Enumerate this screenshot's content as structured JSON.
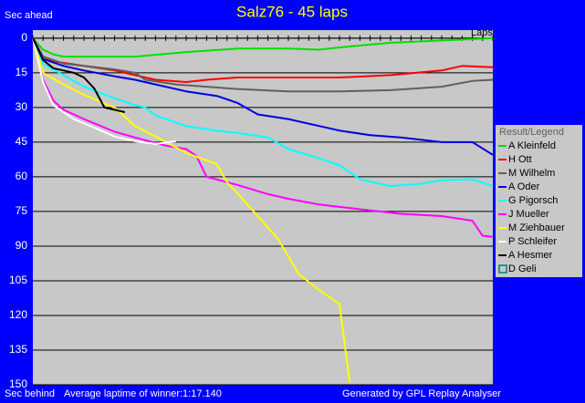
{
  "chart_data": {
    "type": "line",
    "title": "Salz76 - 45 laps",
    "y_label_top": "Sec ahead",
    "y_label_bottom": "Sec behind",
    "x_label": "Laps",
    "footer_left": "Average laptime of winner:1:17.140",
    "footer_right": "Generated by GPL Replay Analyser",
    "legend_title": "Result/Legend",
    "xlim": [
      0,
      45
    ],
    "ylim": [
      -3.5,
      150
    ],
    "y_inverted": true,
    "yticks": [
      0,
      15,
      30,
      45,
      60,
      75,
      90,
      105,
      120,
      135,
      150
    ],
    "grid": true,
    "legend": "right",
    "series": [
      {
        "name": "A Kleinfeld",
        "color": "#00e000",
        "x": [
          0,
          1,
          2,
          3,
          10,
          15,
          20,
          25,
          28,
          30,
          35,
          40,
          45
        ],
        "values": [
          0,
          5,
          7,
          8,
          8,
          6,
          4.5,
          4.5,
          5,
          4,
          2,
          1,
          0
        ]
      },
      {
        "name": "H Ott",
        "color": "#ff0000",
        "x": [
          0,
          1,
          2,
          5,
          8,
          10,
          12,
          15,
          17,
          20,
          25,
          30,
          35,
          40,
          42,
          45
        ],
        "values": [
          0,
          8,
          10,
          12,
          14,
          16,
          18,
          19,
          18,
          17,
          17,
          17,
          16,
          14,
          12,
          12.6
        ]
      },
      {
        "name": "M Wilhelm",
        "color": "#606060",
        "x": [
          0,
          1,
          3,
          5,
          8,
          10,
          11,
          14,
          17,
          20,
          25,
          30,
          35,
          40,
          43,
          45
        ],
        "values": [
          0,
          8,
          11,
          12,
          13.5,
          15,
          18,
          20,
          21,
          22,
          23,
          23,
          22.5,
          21,
          18.5,
          18
        ]
      },
      {
        "name": "A Oder",
        "color": "#0000e0",
        "x": [
          0,
          1,
          3,
          5,
          8,
          10,
          12,
          15,
          18,
          20,
          22,
          25,
          28,
          30,
          33,
          36,
          40,
          43,
          45
        ],
        "values": [
          0,
          9,
          12,
          14,
          16.5,
          18,
          20,
          23,
          25,
          28,
          33,
          35,
          38,
          40,
          42,
          43,
          45,
          45,
          50.5
        ]
      },
      {
        "name": "G Pigorsch",
        "color": "#00ffff",
        "x": [
          0,
          1,
          3,
          5,
          8,
          10,
          11,
          12,
          15,
          18,
          20,
          23,
          25,
          28,
          30,
          32,
          35,
          38,
          40,
          43,
          45
        ],
        "values": [
          0,
          11,
          16,
          21,
          26,
          29,
          30,
          33.5,
          38,
          40,
          41,
          43,
          48,
          52,
          55,
          61,
          64,
          63,
          61.5,
          61,
          64
        ]
      },
      {
        "name": "J Mueller",
        "color": "#ff00ff",
        "x": [
          0,
          1,
          2,
          3,
          5,
          8,
          10,
          13,
          15,
          16,
          17,
          20,
          23,
          25,
          28,
          30,
          33,
          36,
          40,
          43,
          44,
          45
        ],
        "values": [
          0,
          18,
          27,
          31,
          35,
          40.5,
          43,
          46.5,
          48,
          51,
          60,
          63.5,
          67.5,
          69.5,
          72,
          73,
          74.5,
          76,
          77,
          79,
          85.5,
          86
        ]
      },
      {
        "name": "M Ziehbauer",
        "color": "#ffff00",
        "x": [
          0,
          1,
          3,
          5,
          8,
          10,
          12,
          15,
          18,
          19,
          20,
          22,
          24,
          26,
          28,
          30,
          31
        ],
        "values": [
          0,
          15,
          20,
          24.5,
          30,
          38,
          42.5,
          49.7,
          54.5,
          62.4,
          67,
          77,
          87,
          102,
          109,
          115,
          149
        ]
      },
      {
        "name": "P Schleifer",
        "color": "#ffffff",
        "x": [
          0,
          1,
          2,
          4,
          6,
          8,
          10,
          12,
          14
        ],
        "values": [
          0,
          19,
          29,
          35,
          38.7,
          42.6,
          44.6,
          45.8,
          44.6
        ]
      },
      {
        "name": "A Hesmer",
        "color": "#000000",
        "x": [
          0,
          1,
          2,
          3,
          4,
          5,
          6,
          7,
          8,
          9
        ],
        "values": [
          0,
          9.5,
          13,
          14,
          15,
          17,
          21.7,
          30,
          31,
          32
        ]
      },
      {
        "name": "D Geli",
        "color": "#008080",
        "x": [],
        "values": []
      }
    ]
  }
}
